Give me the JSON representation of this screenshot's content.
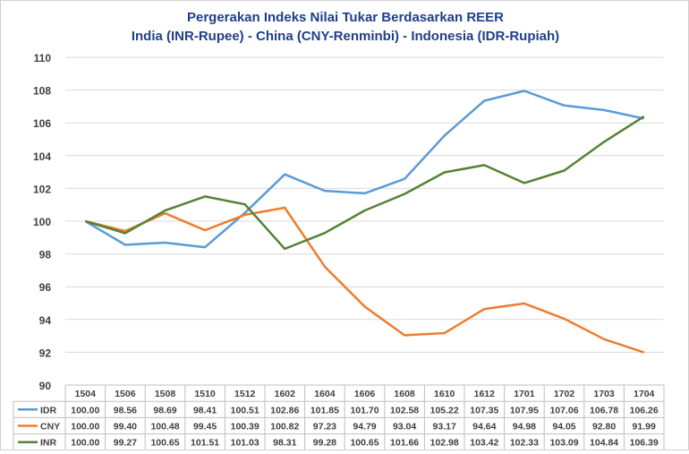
{
  "chart_data": {
    "type": "line",
    "title_line1": "Pergerakan Indeks Nilai Tukar Berdasarkan REER",
    "title_line2": "India (INR-Rupee) - China (CNY-Renminbi) - Indonesia (IDR-Rupiah)",
    "xlabel": "",
    "ylabel": "",
    "ylim": [
      90,
      110
    ],
    "yticks": [
      90,
      92,
      94,
      96,
      98,
      100,
      102,
      104,
      106,
      108,
      110
    ],
    "grid": true,
    "legend": "data-table-below",
    "categories": [
      "1504",
      "1506",
      "1508",
      "1510",
      "1512",
      "1602",
      "1604",
      "1606",
      "1608",
      "1610",
      "1612",
      "1701",
      "1702",
      "1703",
      "1704"
    ],
    "series": [
      {
        "name": "IDR",
        "color": "#5b9bd5",
        "values": [
          100.0,
          98.56,
          98.69,
          98.41,
          100.51,
          102.86,
          101.85,
          101.7,
          102.58,
          105.22,
          107.35,
          107.95,
          107.06,
          106.78,
          106.26
        ],
        "labels": [
          "100.00",
          "98.56",
          "98.69",
          "98.41",
          "100.51",
          "102.86",
          "101.85",
          "101.70",
          "102.58",
          "105.22",
          "107.35",
          "107.95",
          "107.06",
          "106.78",
          "106.26"
        ]
      },
      {
        "name": "CNY",
        "color": "#ed7d31",
        "values": [
          100.0,
          99.4,
          100.48,
          99.45,
          100.39,
          100.82,
          97.23,
          94.79,
          93.04,
          93.17,
          94.64,
          94.98,
          94.05,
          92.8,
          91.99
        ],
        "labels": [
          "100.00",
          "99.40",
          "100.48",
          "99.45",
          "100.39",
          "100.82",
          "97.23",
          "94.79",
          "93.04",
          "93.17",
          "94.64",
          "94.98",
          "94.05",
          "92.80",
          "91.99"
        ]
      },
      {
        "name": "INR",
        "color": "#548235",
        "values": [
          100.0,
          99.27,
          100.65,
          101.51,
          101.03,
          98.31,
          99.28,
          100.65,
          101.66,
          102.98,
          103.42,
          102.33,
          103.09,
          104.84,
          106.39
        ],
        "labels": [
          "100.00",
          "99.27",
          "100.65",
          "101.51",
          "101.03",
          "98.31",
          "99.28",
          "100.65",
          "101.66",
          "102.98",
          "103.42",
          "102.33",
          "103.09",
          "104.84",
          "106.39"
        ]
      }
    ]
  }
}
